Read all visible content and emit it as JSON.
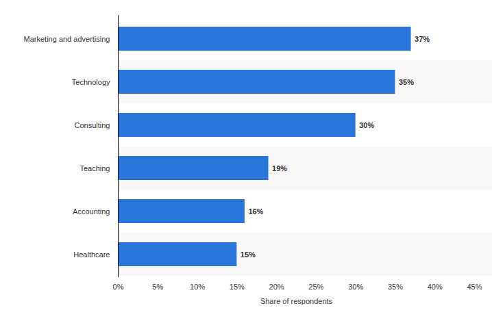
{
  "chart_data": {
    "type": "bar",
    "orientation": "horizontal",
    "categories": [
      "Marketing and advertising",
      "Technology",
      "Consulting",
      "Teaching",
      "Accounting",
      "Healthcare"
    ],
    "values": [
      37,
      35,
      30,
      19,
      16,
      15
    ],
    "value_labels": [
      "37%",
      "35%",
      "30%",
      "19%",
      "16%",
      "15%"
    ],
    "data_labels": true,
    "color": "#2a75d9",
    "xlabel": "Share of respondents",
    "xlim": [
      0,
      45
    ],
    "xticks": [
      {
        "value": 0,
        "label": "0%"
      },
      {
        "value": 5,
        "label": "5%"
      },
      {
        "value": 10,
        "label": "10%"
      },
      {
        "value": 15,
        "label": "15%"
      },
      {
        "value": 20,
        "label": "20%"
      },
      {
        "value": 25,
        "label": "25%"
      },
      {
        "value": 30,
        "label": "30%"
      },
      {
        "value": 35,
        "label": "35%"
      },
      {
        "value": 40,
        "label": "40%"
      },
      {
        "value": 45,
        "label": "45%"
      }
    ],
    "grid": false
  }
}
